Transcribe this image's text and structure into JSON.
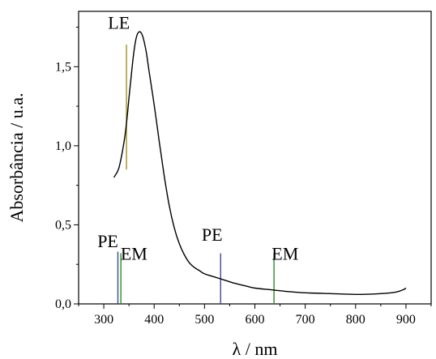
{
  "chart_data": {
    "type": "line",
    "xlabel": "λ / nm",
    "ylabel": "Absorbância / u.a.",
    "xlim": [
      250,
      950
    ],
    "ylim": [
      0.0,
      1.85
    ],
    "x_ticks": [
      300,
      400,
      500,
      600,
      700,
      800,
      900
    ],
    "x_tick_labels": [
      "300",
      "400",
      "500",
      "600",
      "700",
      "800",
      "900"
    ],
    "y_ticks": [
      0.0,
      0.5,
      1.0,
      1.5
    ],
    "y_tick_labels": [
      "0,0",
      "0,5",
      "1,0",
      "1,5"
    ],
    "grid": false,
    "series": [
      {
        "color": "#000000",
        "x": [
          320,
          330,
          340,
          345,
          350,
          355,
          360,
          365,
          370,
          375,
          380,
          385,
          390,
          400,
          410,
          420,
          430,
          440,
          450,
          460,
          470,
          480,
          490,
          500,
          520,
          540,
          560,
          580,
          600,
          630,
          660,
          700,
          750,
          800,
          850,
          880,
          895,
          900
        ],
        "y": [
          0.8,
          0.86,
          1.02,
          1.14,
          1.3,
          1.46,
          1.6,
          1.69,
          1.72,
          1.71,
          1.66,
          1.58,
          1.47,
          1.26,
          1.03,
          0.81,
          0.62,
          0.48,
          0.38,
          0.31,
          0.26,
          0.23,
          0.21,
          0.19,
          0.17,
          0.15,
          0.13,
          0.115,
          0.1,
          0.09,
          0.08,
          0.07,
          0.065,
          0.06,
          0.065,
          0.075,
          0.09,
          0.1
        ]
      }
    ],
    "vertical_lines": [
      {
        "x": 345,
        "y_bottom": 0.85,
        "y_top": 1.64,
        "color": "#a09020"
      },
      {
        "x": 328,
        "y_bottom": 0.0,
        "y_top": 0.33,
        "color": "#3a4a8a"
      },
      {
        "x": 334,
        "y_bottom": 0.0,
        "y_top": 0.32,
        "color": "#2a8a2a"
      },
      {
        "x": 532,
        "y_bottom": 0.0,
        "y_top": 0.32,
        "color": "#3a4a8a"
      },
      {
        "x": 638,
        "y_bottom": 0.0,
        "y_top": 0.32,
        "color": "#2a8a2a"
      }
    ],
    "annotations": [
      {
        "text": "LE",
        "x": 330,
        "y": 1.74
      },
      {
        "text": "PE",
        "x": 308,
        "y": 0.36
      },
      {
        "text": "EM",
        "x": 360,
        "y": 0.28
      },
      {
        "text": "PE",
        "x": 515,
        "y": 0.4
      },
      {
        "text": "EM",
        "x": 660,
        "y": 0.28
      }
    ]
  }
}
